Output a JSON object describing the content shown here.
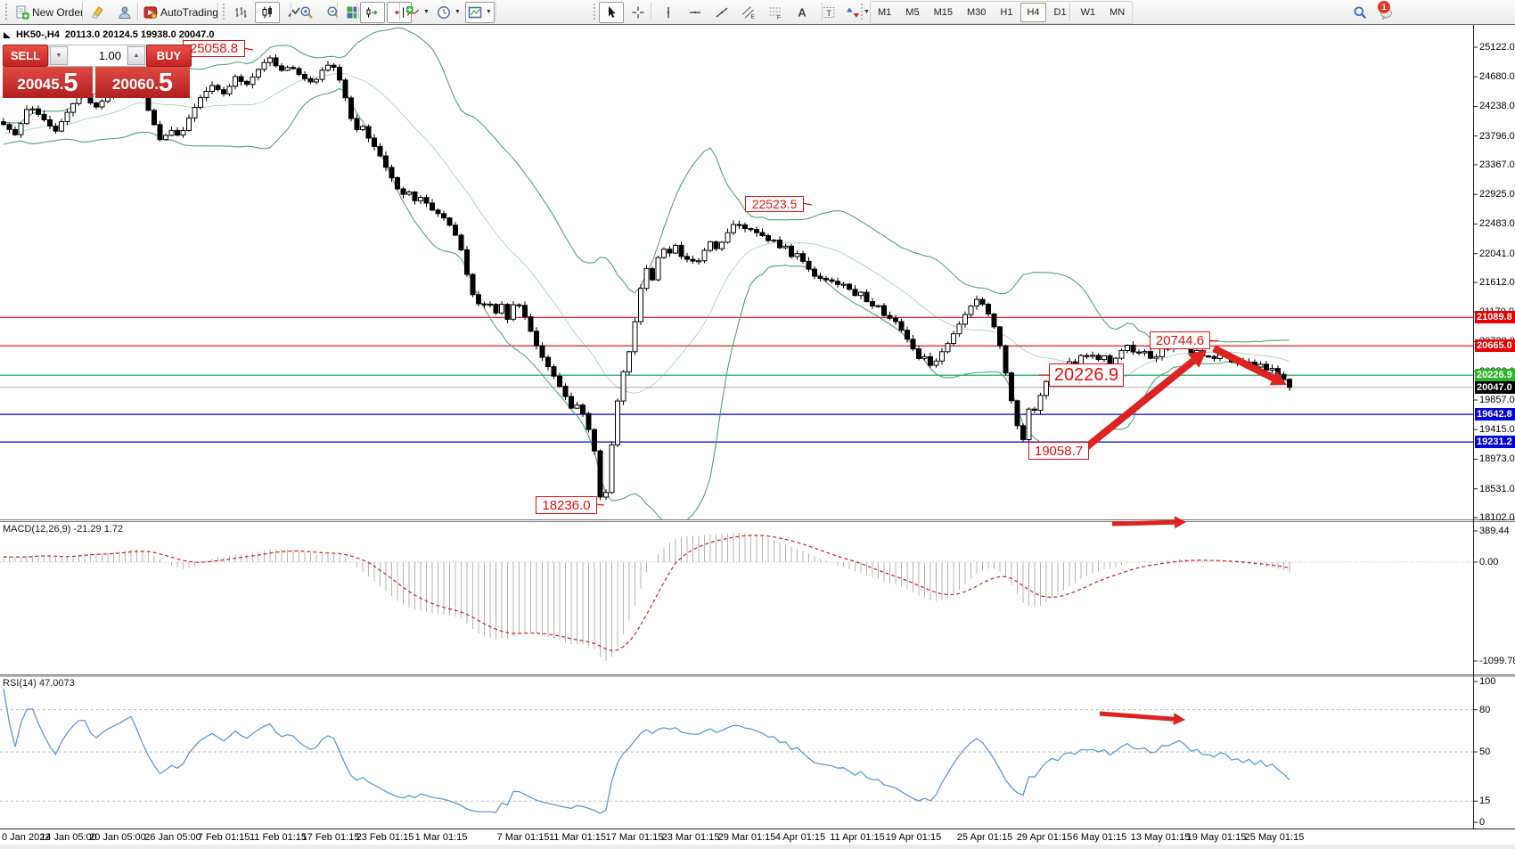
{
  "toolbar": {
    "new_order_label": "New Order",
    "autotrading_label": "AutoTrading",
    "notification_count": "1",
    "timeframes": [
      "M1",
      "M5",
      "M15",
      "M30",
      "H1",
      "H4",
      "D1",
      "W1",
      "MN"
    ],
    "active_timeframe": "H4",
    "groups": [
      {
        "items": [
          {
            "icon": "new-order-icon",
            "label": "New Order"
          }
        ]
      },
      {
        "items": [
          {
            "icon": "highlighter-icon"
          },
          {
            "icon": "profile-icon"
          },
          {
            "icon": "signal-icon"
          }
        ]
      },
      {
        "items": [
          {
            "icon": "autotrading-icon",
            "label": "AutoTrading"
          }
        ]
      },
      {
        "items": [
          {
            "icon": "bar-chart-icon"
          },
          {
            "icon": "candlestick-chart-icon",
            "selected": true
          },
          {
            "icon": "line-chart-icon"
          }
        ]
      },
      {
        "items": [
          {
            "icon": "zoom-in-icon"
          },
          {
            "icon": "zoom-out-icon"
          }
        ]
      },
      {
        "items": [
          {
            "icon": "tile-windows-icon"
          }
        ]
      },
      {
        "items": [
          {
            "icon": "auto-scroll-icon",
            "selected": true
          },
          {
            "icon": "chart-shift-icon",
            "selected": true
          }
        ]
      },
      {
        "items": [
          {
            "icon": "indicators-icon",
            "caret": true
          },
          {
            "icon": "periods-icon",
            "caret": true
          },
          {
            "icon": "templates-icon",
            "caret": true,
            "selected": true
          }
        ]
      },
      {
        "items": [
          {
            "icon": "cursor-icon",
            "selected": true
          },
          {
            "icon": "crosshair-icon"
          }
        ]
      },
      {
        "items": [
          {
            "icon": "vertical-line-icon"
          },
          {
            "icon": "horizontal-line-icon"
          },
          {
            "icon": "trendline-icon"
          },
          {
            "icon": "channel-icon"
          },
          {
            "icon": "fibonacci-icon"
          },
          {
            "icon": "text-icon"
          },
          {
            "icon": "text-label-icon"
          },
          {
            "icon": "shapes-icon",
            "caret": true
          }
        ]
      },
      {
        "items": [
          {
            "icon": "search-icon"
          },
          {
            "icon": "notifications-icon"
          }
        ]
      }
    ]
  },
  "symbol_header": {
    "symbol_tf": "HK50-,H4",
    "ohlc": "20113.0 20124.5 19938.0 20047.0"
  },
  "trade_panel": {
    "sell_label": "SELL",
    "buy_label": "BUY",
    "volume": "1.00",
    "sell_price_main": "20045.",
    "sell_price_big": "5",
    "buy_price_main": "20060.",
    "buy_price_big": "5"
  },
  "annotations": [
    {
      "text": "25058.8"
    },
    {
      "text": "22523.5"
    },
    {
      "text": "20744.6"
    },
    {
      "text": "20226.9"
    },
    {
      "text": "19058.7"
    },
    {
      "text": "18236.0"
    }
  ],
  "price_axis": {
    "ticks": [
      "25122.0",
      "24680.0",
      "24238.0",
      "23796.0",
      "23367.0",
      "22925.0",
      "22483.0",
      "22041.0",
      "21612.0",
      "21170.0",
      "20728.0",
      "20286.0",
      "19857.0",
      "19415.0",
      "18973.0",
      "18531.0",
      "18102.0"
    ],
    "badges": [
      {
        "label": "21089.8",
        "color": "#e60000",
        "line": "#e60000"
      },
      {
        "label": "20665.0",
        "color": "#e60000",
        "line": "#e60000"
      },
      {
        "label": "20226.9",
        "color": "#2db52d",
        "line": "#00a651"
      },
      {
        "label": "20047.0",
        "color": "#000000",
        "line": "#b4b4b4"
      },
      {
        "label": "19642.8",
        "color": "#0000d8",
        "line": "#0000e0"
      },
      {
        "label": "19231.2",
        "color": "#0000d8",
        "line": "#0000e0"
      }
    ]
  },
  "indicator_macd": {
    "label": "MACD(12,26,9) -21.29 1.72",
    "axis": [
      "389.44",
      "0.00",
      "-1099.78"
    ]
  },
  "indicator_rsi": {
    "label": "RSI(14) 47.0073",
    "axis": [
      "100",
      "80",
      "50",
      "15",
      "0"
    ]
  },
  "time_axis": [
    "0 Jan 2022",
    "14 Jan 05:00",
    "20 Jan 05:00",
    "26 Jan 05:00",
    "7 Feb 01:15",
    "11 Feb 01:15",
    "17 Feb 01:15",
    "23 Feb 01:15",
    "1 Mar 01:15",
    "7 Mar 01:15",
    "11 Mar 01:15",
    "17 Mar 01:15",
    "23 Mar 01:15",
    "29 Mar 01:15",
    "4 Apr 01:15",
    "11 Apr 01:15",
    "19 Apr 01:15",
    "25 Apr 01:15",
    "29 Apr 01:15",
    "6 May 01:15",
    "13 May 01:15",
    "19 May 01:15",
    "25 May 01:15"
  ],
  "chart_data": {
    "type": "candlestick",
    "symbol": "HK50-",
    "timeframe": "H4",
    "ohlc_current": {
      "open": 20113.0,
      "high": 20124.5,
      "low": 19938.0,
      "close": 20047.0
    },
    "bid": 20045.5,
    "ask": 20060.5,
    "marked_levels": {
      "resistance_red": [
        21089.8,
        20665.0
      ],
      "support_green": 20226.9,
      "current_price": 20047.0,
      "support_blue": [
        19642.8,
        19231.2
      ]
    },
    "swing_labels": [
      25058.8,
      22523.5,
      20744.6,
      20226.9,
      19058.7,
      18236.0
    ],
    "bollinger": {
      "period": 20,
      "deviation": 2
    },
    "macd": {
      "fast": 12,
      "slow": 26,
      "signal": 9,
      "current_main": -21.29,
      "current_signal": 1.72,
      "range": [
        389.44,
        -1099.78
      ]
    },
    "rsi": {
      "period": 14,
      "current": 47.0073,
      "levels": [
        80,
        50,
        15
      ]
    },
    "price_path": [
      [
        2,
        23992
      ],
      [
        18,
        23805
      ],
      [
        32,
        24258
      ],
      [
        50,
        24032
      ],
      [
        62,
        23859
      ],
      [
        78,
        24204
      ],
      [
        92,
        24470
      ],
      [
        106,
        24204
      ],
      [
        120,
        24391
      ],
      [
        134,
        24524
      ],
      [
        148,
        24710
      ],
      [
        158,
        24444
      ],
      [
        170,
        24071
      ],
      [
        180,
        23726
      ],
      [
        192,
        23885
      ],
      [
        202,
        23779
      ],
      [
        214,
        24125
      ],
      [
        226,
        24391
      ],
      [
        238,
        24550
      ],
      [
        252,
        24417
      ],
      [
        264,
        24683
      ],
      [
        276,
        24550
      ],
      [
        290,
        24790
      ],
      [
        302,
        24980
      ],
      [
        314,
        24763
      ],
      [
        326,
        24843
      ],
      [
        338,
        24683
      ],
      [
        352,
        24577
      ],
      [
        362,
        24790
      ],
      [
        372,
        24896
      ],
      [
        382,
        24603
      ],
      [
        390,
        24258
      ],
      [
        398,
        23859
      ],
      [
        406,
        23965
      ],
      [
        414,
        23752
      ],
      [
        424,
        23566
      ],
      [
        432,
        23353
      ],
      [
        442,
        23114
      ],
      [
        450,
        22901
      ],
      [
        458,
        22981
      ],
      [
        466,
        22821
      ],
      [
        474,
        22901
      ],
      [
        482,
        22715
      ],
      [
        492,
        22635
      ],
      [
        500,
        22555
      ],
      [
        508,
        22396
      ],
      [
        516,
        22183
      ],
      [
        524,
        21731
      ],
      [
        532,
        21358
      ],
      [
        540,
        21252
      ],
      [
        548,
        21332
      ],
      [
        556,
        21146
      ],
      [
        564,
        21305
      ],
      [
        570,
        21039
      ],
      [
        578,
        21358
      ],
      [
        586,
        21199
      ],
      [
        594,
        20933
      ],
      [
        602,
        20667
      ],
      [
        610,
        20454
      ],
      [
        618,
        20294
      ],
      [
        626,
        20108
      ],
      [
        634,
        19922
      ],
      [
        642,
        19709
      ],
      [
        650,
        19815
      ],
      [
        656,
        19576
      ],
      [
        662,
        19363
      ],
      [
        668,
        19044
      ],
      [
        674,
        18350
      ],
      [
        678,
        18260
      ],
      [
        684,
        18911
      ],
      [
        690,
        19576
      ],
      [
        696,
        20108
      ],
      [
        702,
        20400
      ],
      [
        708,
        20667
      ],
      [
        714,
        21146
      ],
      [
        720,
        21598
      ],
      [
        726,
        21837
      ],
      [
        732,
        21651
      ],
      [
        738,
        21970
      ],
      [
        744,
        22130
      ],
      [
        750,
        21997
      ],
      [
        756,
        22210
      ],
      [
        762,
        22077
      ],
      [
        768,
        21890
      ],
      [
        774,
        22023
      ],
      [
        780,
        21864
      ],
      [
        786,
        21970
      ],
      [
        792,
        22130
      ],
      [
        798,
        22236
      ],
      [
        804,
        22103
      ],
      [
        810,
        22210
      ],
      [
        816,
        22343
      ],
      [
        822,
        22476
      ],
      [
        828,
        22480
      ],
      [
        834,
        22440
      ],
      [
        840,
        22369
      ],
      [
        846,
        22449
      ],
      [
        852,
        22263
      ],
      [
        858,
        22343
      ],
      [
        864,
        22183
      ],
      [
        870,
        22263
      ],
      [
        876,
        22103
      ],
      [
        882,
        22157
      ],
      [
        888,
        21997
      ],
      [
        894,
        22050
      ],
      [
        900,
        21944
      ],
      [
        906,
        21837
      ],
      [
        912,
        21731
      ],
      [
        918,
        21651
      ],
      [
        924,
        21704
      ],
      [
        930,
        21598
      ],
      [
        936,
        21651
      ],
      [
        942,
        21545
      ],
      [
        948,
        21598
      ],
      [
        954,
        21491
      ],
      [
        960,
        21411
      ],
      [
        966,
        21465
      ],
      [
        972,
        21332
      ],
      [
        978,
        21252
      ],
      [
        984,
        21305
      ],
      [
        990,
        21146
      ],
      [
        996,
        21066
      ],
      [
        1002,
        21093
      ],
      [
        1008,
        20960
      ],
      [
        1014,
        20853
      ],
      [
        1020,
        20720
      ],
      [
        1026,
        20587
      ],
      [
        1032,
        20454
      ],
      [
        1038,
        20507
      ],
      [
        1044,
        20374
      ],
      [
        1050,
        20427
      ],
      [
        1056,
        20560
      ],
      [
        1062,
        20667
      ],
      [
        1068,
        20800
      ],
      [
        1074,
        20933
      ],
      [
        1080,
        21066
      ],
      [
        1086,
        21199
      ],
      [
        1092,
        21305
      ],
      [
        1098,
        21385
      ],
      [
        1104,
        21252
      ],
      [
        1110,
        21119
      ],
      [
        1116,
        20933
      ],
      [
        1122,
        20667
      ],
      [
        1128,
        20294
      ],
      [
        1134,
        19895
      ],
      [
        1140,
        19602
      ],
      [
        1146,
        19090
      ],
      [
        1150,
        19443
      ],
      [
        1156,
        19815
      ],
      [
        1162,
        19682
      ],
      [
        1168,
        19948
      ],
      [
        1174,
        20134
      ],
      [
        1180,
        20267
      ],
      [
        1186,
        20134
      ],
      [
        1192,
        20347
      ],
      [
        1198,
        20480
      ],
      [
        1204,
        20321
      ],
      [
        1210,
        20454
      ],
      [
        1216,
        20587
      ],
      [
        1222,
        20454
      ],
      [
        1228,
        20560
      ],
      [
        1234,
        20427
      ],
      [
        1240,
        20534
      ],
      [
        1246,
        20374
      ],
      [
        1252,
        20480
      ],
      [
        1258,
        20587
      ],
      [
        1264,
        20693
      ],
      [
        1270,
        20587
      ],
      [
        1276,
        20534
      ],
      [
        1282,
        20613
      ],
      [
        1288,
        20534
      ],
      [
        1294,
        20427
      ],
      [
        1300,
        20560
      ],
      [
        1306,
        20667
      ],
      [
        1312,
        20613
      ],
      [
        1318,
        20693
      ],
      [
        1324,
        20733
      ],
      [
        1330,
        20667
      ],
      [
        1336,
        20560
      ],
      [
        1342,
        20613
      ],
      [
        1348,
        20507
      ],
      [
        1354,
        20534
      ],
      [
        1360,
        20454
      ],
      [
        1366,
        20507
      ],
      [
        1372,
        20560
      ],
      [
        1378,
        20480
      ],
      [
        1384,
        20400
      ],
      [
        1390,
        20454
      ],
      [
        1396,
        20374
      ],
      [
        1402,
        20427
      ],
      [
        1408,
        20347
      ],
      [
        1414,
        20400
      ],
      [
        1420,
        20294
      ],
      [
        1426,
        20347
      ],
      [
        1432,
        20267
      ],
      [
        1438,
        20187
      ],
      [
        1444,
        20134
      ],
      [
        1449,
        20047
      ]
    ]
  }
}
